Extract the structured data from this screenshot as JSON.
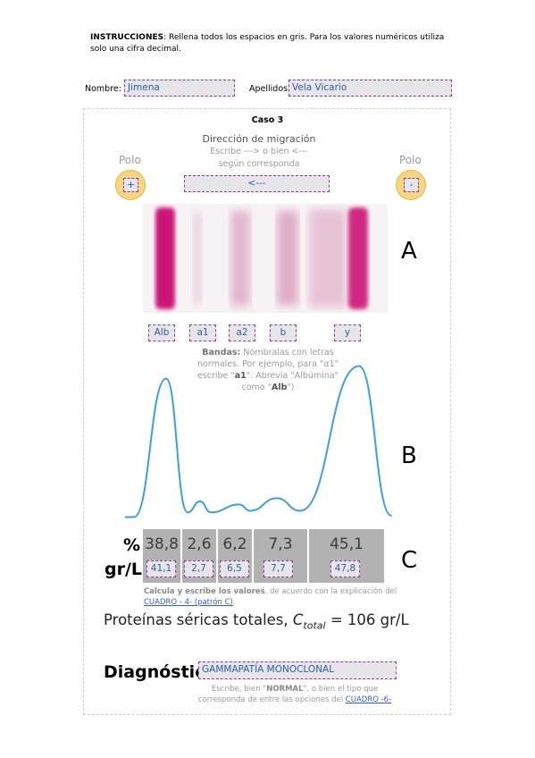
{
  "instructions": {
    "bold": "INSTRUCCIONES",
    "line1": ": Rellena todos los espacios en gris. Para los valores numéricos utiliza",
    "line2": "solo una cifra decimal."
  },
  "student": {
    "name_label": "Nombre:",
    "name_value": "Jimena",
    "surname_label": "Apellidos:",
    "surname_value": "Vela Vicario"
  },
  "case_title": "Caso 3",
  "migration": {
    "title": "Dirección de migración",
    "hint1": "Escribe ---> o bien <---",
    "hint2": "según corresponda",
    "value": "<---",
    "pole_label": "Polo",
    "left_pole_value": "+",
    "right_pole_value": "-"
  },
  "sections": {
    "a": "A",
    "b": "B",
    "c": "C"
  },
  "bands": {
    "labels": [
      "Alb",
      "a1",
      "a2",
      "b",
      "y"
    ],
    "hint_bold": "Bandas:",
    "hint1": " Nómbralas con letras",
    "hint2": "normales. Por ejemplo, para \"α1\"",
    "hint3a": "escribe \"",
    "hint3b": "a1",
    "hint3c": "\". Abrevia \"Albúmina\"",
    "hint4a": "como \"",
    "hint4b": "Alb",
    "hint4c": "\")"
  },
  "table": {
    "pct_label": "%",
    "gl_label": "gr/L",
    "percentages": [
      "38,8",
      "2,6",
      "6,2",
      "7,3",
      "45,1"
    ],
    "grams": [
      "41,1",
      "2,7",
      "6,5",
      "7,7",
      "47,8"
    ],
    "note_bold": "Calcula y escribe los valores",
    "note_rest": ", de acuerdo con la explicación del",
    "note_link": "CUADRO - 4- (patrón C)",
    "note_end": "."
  },
  "total": {
    "prefix": "Proteínas séricas totales, ",
    "symbol": "C",
    "subscript": "total",
    "suffix": " = 106 gr/L"
  },
  "diagnosis": {
    "label": "Diagnóstico:",
    "value": "GAMMAPATÍA MONOCLONAL",
    "hint1a": "Escribe, bien \"",
    "hint1b": "NORMAL",
    "hint1c": "\", o bien el tipo que",
    "hint2": "corresponda de entre las opciones del ",
    "hint_link": "CUADRO -6-"
  },
  "colors": {
    "field_border": "#9b2fa7",
    "band": "#cc1477",
    "curve": "#3d9ee0",
    "link": "#2f5fc4"
  },
  "chart_data": {
    "type": "line",
    "title": "",
    "series": [
      {
        "values": [
          2,
          2,
          90,
          5,
          12,
          5,
          10,
          6,
          14,
          6,
          98,
          3
        ]
      }
    ],
    "x": [
      0,
      1,
      2,
      3,
      4,
      5,
      6,
      7,
      8,
      9,
      10,
      11
    ],
    "xlabel": "",
    "ylabel": "",
    "ylim": [
      0,
      100
    ]
  }
}
